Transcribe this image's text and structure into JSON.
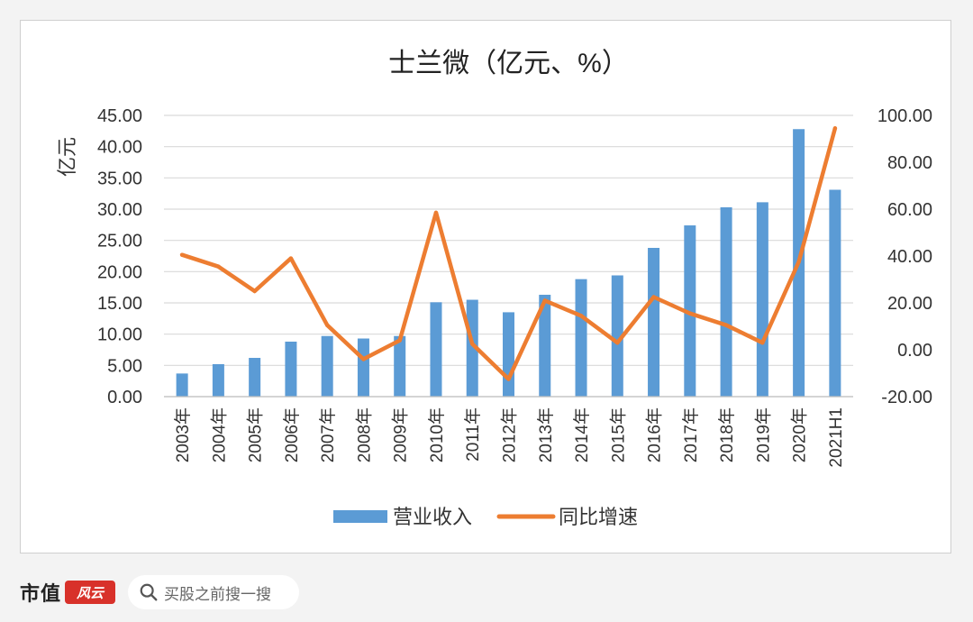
{
  "chart_data": {
    "type": "bar+line",
    "title": "士兰微（亿元、%）",
    "ylabel": "亿元",
    "categories": [
      "2003年",
      "2004年",
      "2005年",
      "2006年",
      "2007年",
      "2008年",
      "2009年",
      "2010年",
      "2011年",
      "2012年",
      "2013年",
      "2014年",
      "2015年",
      "2016年",
      "2017年",
      "2018年",
      "2019年",
      "2020年",
      "2021H1"
    ],
    "series": [
      {
        "name": "营业收入",
        "type": "bar",
        "axis": "left",
        "color": "#5b9bd5",
        "values": [
          3.7,
          5.2,
          6.2,
          8.8,
          9.7,
          9.3,
          9.7,
          15.1,
          15.5,
          13.5,
          16.3,
          18.8,
          19.4,
          23.8,
          27.4,
          30.3,
          31.1,
          42.8,
          33.1
        ]
      },
      {
        "name": "同比增速",
        "type": "line",
        "axis": "right",
        "color": "#ed7d31",
        "values": [
          40.5,
          35.5,
          25.0,
          39.0,
          10.5,
          -4.0,
          4.0,
          58.5,
          2.5,
          -12.5,
          21.0,
          14.5,
          3.0,
          22.5,
          15.5,
          10.5,
          3.0,
          37.5,
          94.5
        ]
      }
    ],
    "ylim_left": [
      0,
      45
    ],
    "yticks_left": [
      "0.00",
      "5.00",
      "10.00",
      "15.00",
      "20.00",
      "25.00",
      "30.00",
      "35.00",
      "40.00",
      "45.00"
    ],
    "ylim_right": [
      -20,
      100
    ],
    "yticks_right": [
      "-20.00",
      "0.00",
      "20.00",
      "40.00",
      "60.00",
      "80.00",
      "100.00"
    ],
    "grid": true,
    "legend_position": "bottom"
  },
  "footer": {
    "brand": "市值",
    "badge": "风云",
    "search_placeholder": "买股之前搜一搜",
    "search_icon": "search-icon"
  }
}
